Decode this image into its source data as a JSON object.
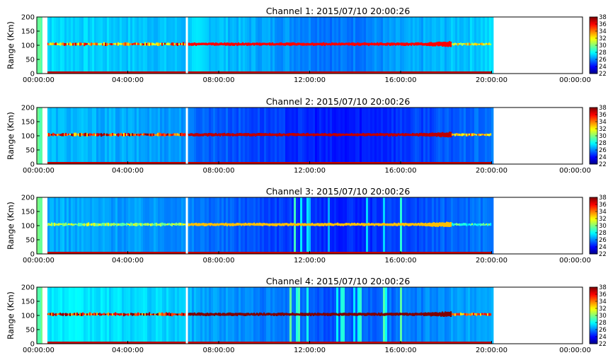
{
  "chart_data": [
    {
      "type": "heatmap",
      "title": "Channel 1: 2015/07/10 20:00:26",
      "ylabel": "Range (Km)",
      "xlabel": "",
      "x_ticks": [
        "00:00:00",
        "04:00:00",
        "08:00:00",
        "12:00:00",
        "16:00:00",
        "20:00:00",
        "00:00:00"
      ],
      "y_ticks": [
        "0",
        "50",
        "100",
        "150",
        "200"
      ],
      "ylim": [
        0,
        200
      ],
      "xlim_hours": [
        0,
        24
      ],
      "data_end_hours": 20.0,
      "gap_marker_hours": 6.6,
      "colorbar_ticks": [
        "22",
        "24",
        "26",
        "28",
        "30",
        "32",
        "34",
        "36",
        "38"
      ],
      "colorbar_range": [
        22,
        38
      ],
      "background_level": 27.5,
      "late_background_level": 26.6,
      "layer_range_km": 104,
      "layer_intensity": 36
    },
    {
      "type": "heatmap",
      "title": "Channel 2: 2015/07/10 20:00:26",
      "ylabel": "Range (Km)",
      "xlabel": "",
      "x_ticks": [
        "00:00:00",
        "04:00:00",
        "08:00:00",
        "12:00:00",
        "16:00:00",
        "20:00:00",
        "00:00:00"
      ],
      "y_ticks": [
        "0",
        "50",
        "100",
        "150",
        "200"
      ],
      "ylim": [
        0,
        200
      ],
      "xlim_hours": [
        0,
        24
      ],
      "data_end_hours": 20.0,
      "gap_marker_hours": 6.6,
      "colorbar_ticks": [
        "22",
        "24",
        "26",
        "28",
        "30",
        "32",
        "34",
        "36",
        "38"
      ],
      "colorbar_range": [
        22,
        38
      ],
      "background_level": 27.0,
      "late_background_level": 25.0,
      "layer_range_km": 104,
      "layer_intensity": 37
    },
    {
      "type": "heatmap",
      "title": "Channel 3: 2015/07/10 20:00:26",
      "ylabel": "Range (Km)",
      "xlabel": "",
      "x_ticks": [
        "00:00:00",
        "04:00:00",
        "08:00:00",
        "12:00:00",
        "16:00:00",
        "20:00:00",
        "00:00:00"
      ],
      "y_ticks": [
        "0",
        "50",
        "100",
        "150",
        "200"
      ],
      "ylim": [
        0,
        200
      ],
      "xlim_hours": [
        0,
        24
      ],
      "data_end_hours": 20.0,
      "gap_marker_hours": 6.6,
      "colorbar_ticks": [
        "22",
        "24",
        "26",
        "28",
        "30",
        "32",
        "34",
        "36",
        "38"
      ],
      "colorbar_range": [
        22,
        38
      ],
      "background_level": 26.8,
      "late_background_level": 25.2,
      "layer_range_km": 104,
      "layer_intensity": 33
    },
    {
      "type": "heatmap",
      "title": "Channel 4: 2015/07/10 20:00:26",
      "ylabel": "Range (Km)",
      "xlabel": "",
      "x_ticks": [
        "00:00:00",
        "04:00:00",
        "08:00:00",
        "12:00:00",
        "16:00:00",
        "20:00:00",
        "00:00:00"
      ],
      "y_ticks": [
        "0",
        "50",
        "100",
        "150",
        "200"
      ],
      "ylim": [
        0,
        200
      ],
      "xlim_hours": [
        0,
        24
      ],
      "data_end_hours": 20.0,
      "gap_marker_hours": 6.6,
      "colorbar_ticks": [
        "22",
        "24",
        "26",
        "28",
        "30",
        "32",
        "34",
        "36",
        "38"
      ],
      "colorbar_range": [
        22,
        38
      ],
      "background_level": 27.8,
      "late_background_level": 26.0,
      "layer_range_km": 104,
      "layer_intensity": 38
    }
  ]
}
